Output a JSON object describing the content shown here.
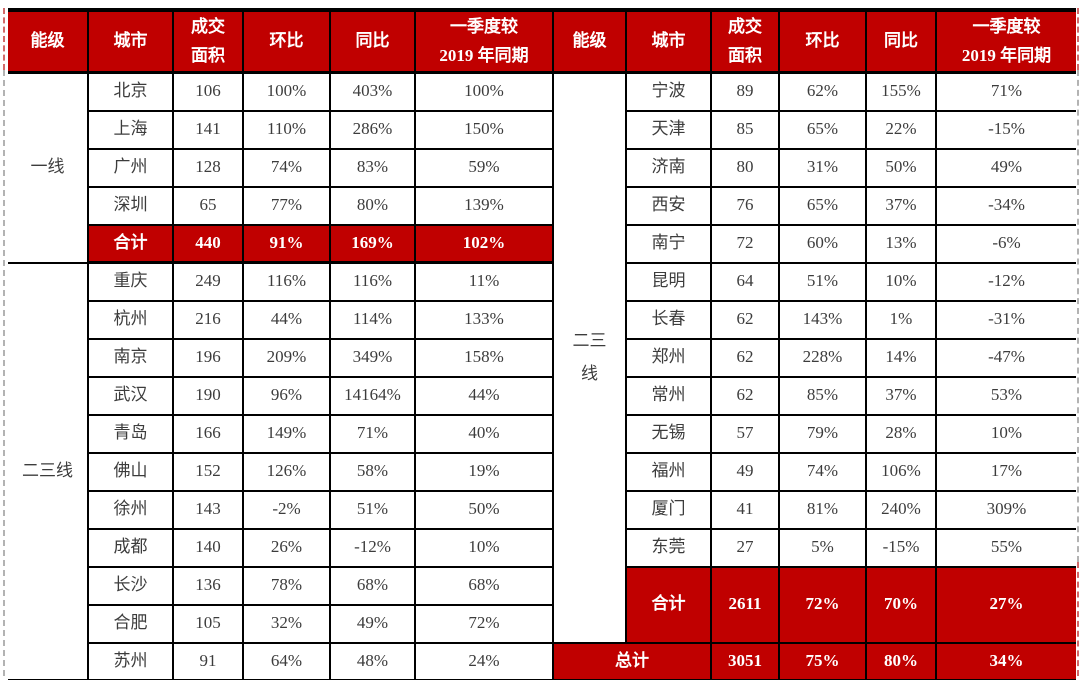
{
  "colors": {
    "accent_red": "#C00000",
    "border": "#000000",
    "text": "#3C3C3C",
    "header_text": "#FFFFFF",
    "dash_gray": "#B3B3B3"
  },
  "chart_data": {
    "type": "table",
    "columns": [
      "能级",
      "城市",
      "成交面积",
      "环比",
      "同比",
      "一季度较2019年同期"
    ],
    "header_display": [
      "能级",
      "城市",
      "成交\n面积",
      "环比",
      "同比",
      "一季度较\n2019 年同期"
    ],
    "panels": [
      {
        "side": "left",
        "groups": [
          {
            "tier": "一线",
            "rows": [
              {
                "city": "北京",
                "values": [
                  "106",
                  "100%",
                  "403%",
                  "100%"
                ]
              },
              {
                "city": "上海",
                "values": [
                  "141",
                  "110%",
                  "286%",
                  "150%"
                ]
              },
              {
                "city": "广州",
                "values": [
                  "128",
                  "74%",
                  "83%",
                  "59%"
                ]
              },
              {
                "city": "深圳",
                "values": [
                  "65",
                  "77%",
                  "80%",
                  "139%"
                ]
              },
              {
                "city": "合计",
                "values": [
                  "440",
                  "91%",
                  "169%",
                  "102%"
                ],
                "highlight": true
              }
            ]
          },
          {
            "tier": "二三线",
            "rows": [
              {
                "city": "重庆",
                "values": [
                  "249",
                  "116%",
                  "116%",
                  "11%"
                ]
              },
              {
                "city": "杭州",
                "values": [
                  "216",
                  "44%",
                  "114%",
                  "133%"
                ]
              },
              {
                "city": "南京",
                "values": [
                  "196",
                  "209%",
                  "349%",
                  "158%"
                ]
              },
              {
                "city": "武汉",
                "values": [
                  "190",
                  "96%",
                  "14164%",
                  "44%"
                ]
              },
              {
                "city": "青岛",
                "values": [
                  "166",
                  "149%",
                  "71%",
                  "40%"
                ]
              },
              {
                "city": "佛山",
                "values": [
                  "152",
                  "126%",
                  "58%",
                  "19%"
                ]
              },
              {
                "city": "徐州",
                "values": [
                  "143",
                  "-2%",
                  "51%",
                  "50%"
                ]
              },
              {
                "city": "成都",
                "values": [
                  "140",
                  "26%",
                  "-12%",
                  "10%"
                ]
              },
              {
                "city": "长沙",
                "values": [
                  "136",
                  "78%",
                  "68%",
                  "68%"
                ]
              },
              {
                "city": "合肥",
                "values": [
                  "105",
                  "32%",
                  "49%",
                  "72%"
                ]
              },
              {
                "city": "苏州",
                "values": [
                  "91",
                  "64%",
                  "48%",
                  "24%"
                ]
              }
            ]
          }
        ]
      },
      {
        "side": "right",
        "groups": [
          {
            "tier": "二三线",
            "rows": [
              {
                "city": "宁波",
                "values": [
                  "89",
                  "62%",
                  "155%",
                  "71%"
                ]
              },
              {
                "city": "天津",
                "values": [
                  "85",
                  "65%",
                  "22%",
                  "-15%"
                ]
              },
              {
                "city": "济南",
                "values": [
                  "80",
                  "31%",
                  "50%",
                  "49%"
                ]
              },
              {
                "city": "西安",
                "values": [
                  "76",
                  "65%",
                  "37%",
                  "-34%"
                ]
              },
              {
                "city": "南宁",
                "values": [
                  "72",
                  "60%",
                  "13%",
                  "-6%"
                ]
              },
              {
                "city": "昆明",
                "values": [
                  "64",
                  "51%",
                  "10%",
                  "-12%"
                ]
              },
              {
                "city": "长春",
                "values": [
                  "62",
                  "143%",
                  "1%",
                  "-31%"
                ]
              },
              {
                "city": "郑州",
                "values": [
                  "62",
                  "228%",
                  "14%",
                  "-47%"
                ]
              },
              {
                "city": "常州",
                "values": [
                  "62",
                  "85%",
                  "37%",
                  "53%"
                ]
              },
              {
                "city": "无锡",
                "values": [
                  "57",
                  "79%",
                  "28%",
                  "10%"
                ]
              },
              {
                "city": "福州",
                "values": [
                  "49",
                  "74%",
                  "106%",
                  "17%"
                ]
              },
              {
                "city": "厦门",
                "values": [
                  "41",
                  "81%",
                  "240%",
                  "309%"
                ]
              },
              {
                "city": "东莞",
                "values": [
                  "27",
                  "5%",
                  "-15%",
                  "55%"
                ]
              },
              {
                "city": "合计",
                "values": [
                  "2611",
                  "72%",
                  "70%",
                  "27%"
                ],
                "highlight": true,
                "tall": true
              }
            ]
          }
        ],
        "grand_total": {
          "label": "总计",
          "values": [
            "3051",
            "75%",
            "80%",
            "34%"
          ]
        }
      }
    ]
  }
}
